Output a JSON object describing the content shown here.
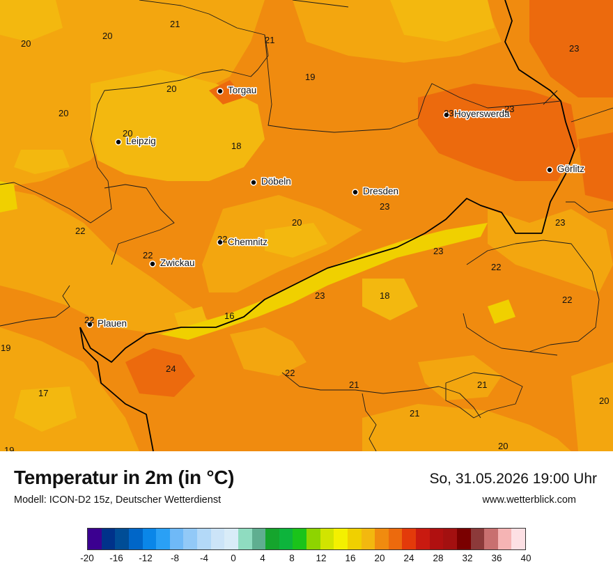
{
  "title": "Temperatur in 2m (in °C)",
  "subtitle": "Modell: ICON-D2 15z, Deutscher Wetterdienst",
  "datetime": "So, 31.05.2026 19:00 Uhr",
  "website": "www.wetterblick.com",
  "colors": {
    "temp_16": "#f0d000",
    "temp_18": "#f3b80f",
    "temp_20": "#f3a60f",
    "temp_22": "#f08b0f",
    "temp_24": "#ec6a0d",
    "border": "#000000",
    "district_line": "#1a1a1a"
  },
  "cities": [
    {
      "name": "Torgau"
    },
    {
      "name": "Hoyerswerda"
    },
    {
      "name": "Leipzig"
    },
    {
      "name": "Görlitz"
    },
    {
      "name": "Döbeln"
    },
    {
      "name": "Dresden"
    },
    {
      "name": "Chemnitz"
    },
    {
      "name": "Zwickau"
    },
    {
      "name": "Plauen"
    }
  ],
  "temperature_labels": [
    "21",
    "20",
    "20",
    "21",
    "23",
    "19",
    "20",
    "20",
    "23",
    "23",
    "20",
    "18",
    "23",
    "20",
    "23",
    "22",
    "22",
    "22",
    "23",
    "22",
    "23",
    "18",
    "22",
    "16",
    "22",
    "19",
    "24",
    "22",
    "21",
    "21",
    "17",
    "20",
    "21",
    "20",
    "19"
  ],
  "legend": {
    "colors": [
      "#3b0090",
      "#00328a",
      "#004d96",
      "#0066c8",
      "#0a86e8",
      "#2aa0f5",
      "#6fb9f7",
      "#92c9f7",
      "#b3d9f8",
      "#cce4f8",
      "#d9ecf8",
      "#8fdcc0",
      "#5fae90",
      "#15a52d",
      "#0db43c",
      "#1ac31a",
      "#8ed400",
      "#d2e400",
      "#f4f000",
      "#f0d000",
      "#f3b80f",
      "#f08b0f",
      "#ec6a0d",
      "#e33a0a",
      "#c91a10",
      "#b01010",
      "#a31010",
      "#7a0000",
      "#8c3a3a",
      "#c87070",
      "#f5b4b4",
      "#fde0e4"
    ],
    "ticks": [
      "-20",
      "-16",
      "-12",
      "-8",
      "-4",
      "0",
      "4",
      "8",
      "12",
      "16",
      "20",
      "24",
      "28",
      "32",
      "36",
      "40"
    ]
  }
}
